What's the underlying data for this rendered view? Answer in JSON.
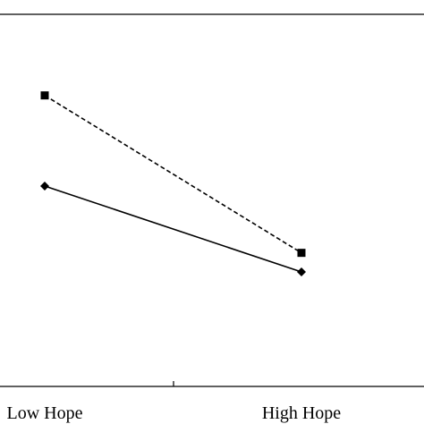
{
  "chart_data": {
    "type": "line",
    "categories": [
      "Low Hope",
      "High Hope"
    ],
    "series": [
      {
        "values": [
          5.55,
          3.9
        ],
        "line_style": "dashed",
        "marker": "square",
        "color": "#000000"
      },
      {
        "values": [
          4.6,
          3.7
        ],
        "line_style": "solid",
        "marker": "diamond",
        "color": "#000000"
      }
    ],
    "ylim": [
      2.5,
      6.4
    ],
    "grid": false,
    "legend": "none"
  }
}
